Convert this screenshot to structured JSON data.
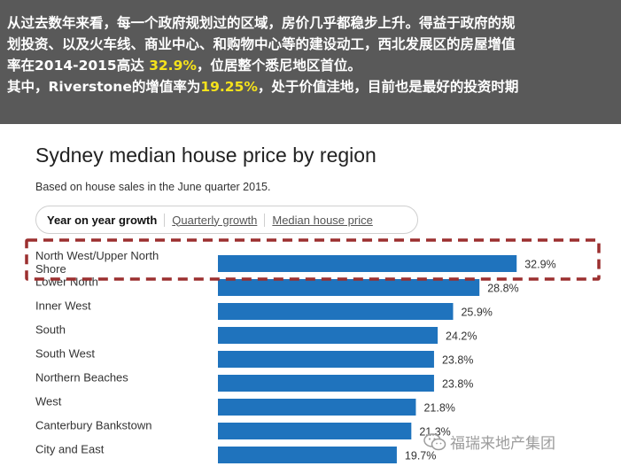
{
  "banner": {
    "line1": "从过去数年来看，每一个政府规划过的区域，房价几乎都稳步上升。得益于政府的规",
    "line2": "划投资、以及火车线、商业中心、和购物中心等的建设动工，西北发展区的房屋增值",
    "line3_pre": "率在2014-2015高达 ",
    "line3_hl": "32.9%",
    "line3_post": "，位居整个悉尼地区首位。",
    "line4_pre": "其中，Riverstone的增值率为",
    "line4_hl": "19.25%",
    "line4_post": "，处于价值洼地，目前也是最好的投资时期"
  },
  "tabs": {
    "active": "Year on year growth",
    "quarterly": "Quarterly growth",
    "median": "Median house price"
  },
  "watermark": {
    "text": "福瑞来地产集团",
    "icon": "wechat-icon"
  },
  "colors": {
    "bar": "#1f73bd",
    "highlight": "#9b2f2f",
    "banner_bg": "#595959",
    "banner_accent": "#f5e21c"
  },
  "chart_data": {
    "type": "bar",
    "orientation": "horizontal",
    "title": "Sydney median house price by region",
    "subtitle": "Based on house sales in the June quarter 2015.",
    "categories": [
      "North West/Upper North Shore",
      "Lower North",
      "Inner West",
      "South",
      "South West",
      "Northern Beaches",
      "West",
      "Canterbury Bankstown",
      "City and East"
    ],
    "values": [
      32.9,
      28.8,
      25.9,
      24.2,
      23.8,
      23.8,
      21.8,
      21.3,
      19.7
    ],
    "value_labels": [
      "32.9%",
      "28.8%",
      "25.9%",
      "24.2%",
      "23.8%",
      "23.8%",
      "21.8%",
      "21.3%",
      "19.7%"
    ],
    "highlighted_category": "North West/Upper North Shore",
    "grid": false
  }
}
